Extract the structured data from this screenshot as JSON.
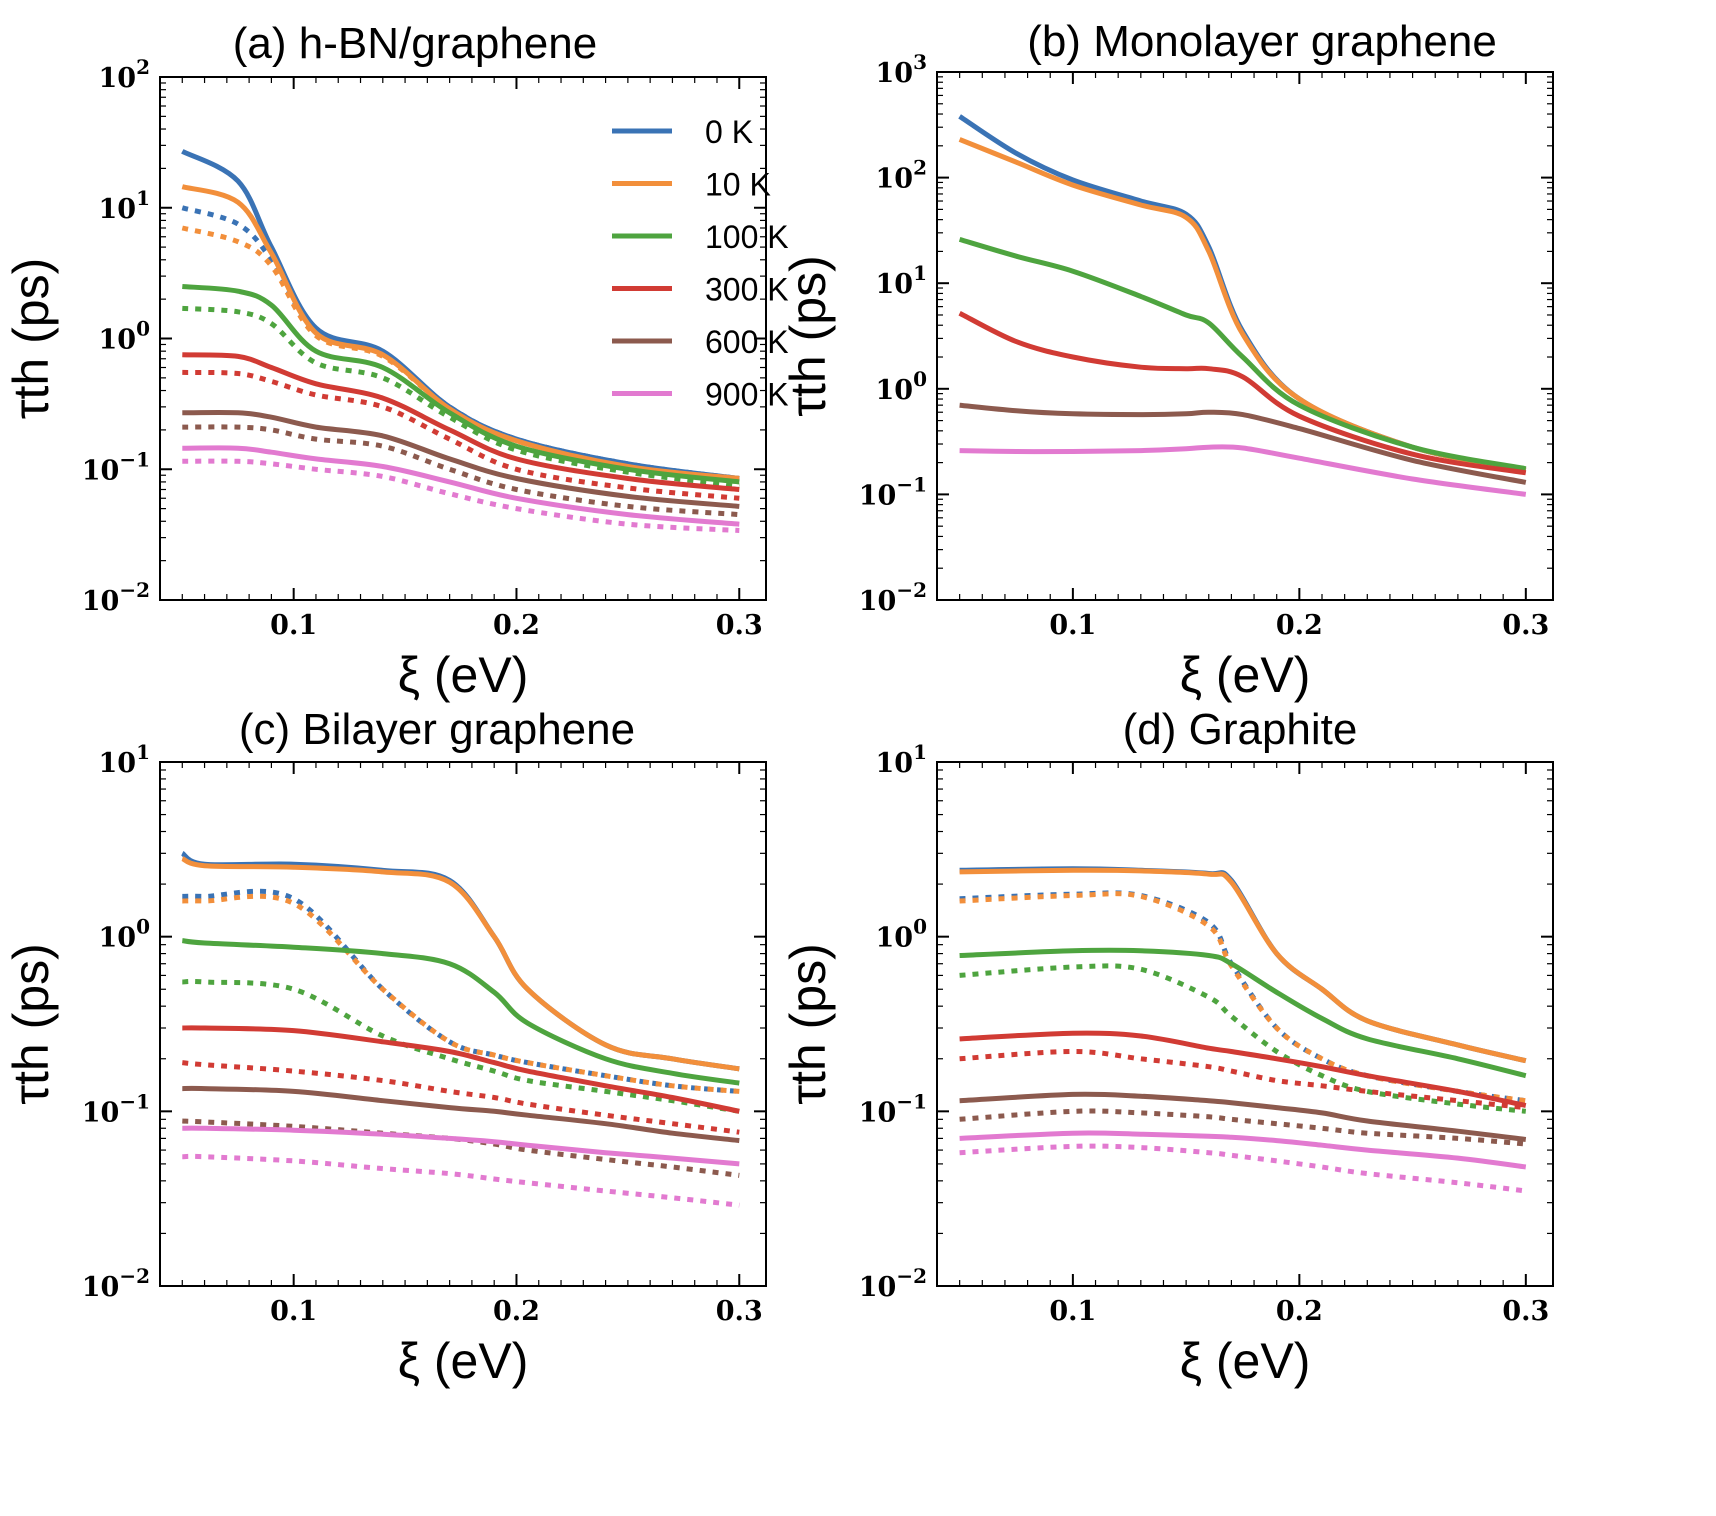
{
  "figure": {
    "legend": {
      "placement": "top-right of panel (a)",
      "entries": [
        {
          "label": "0 K",
          "color": "#3a73b5"
        },
        {
          "label": "10 K",
          "color": "#f28f3b"
        },
        {
          "label": "100 K",
          "color": "#4ea43f"
        },
        {
          "label": "300 K",
          "color": "#d13b34"
        },
        {
          "label": "600 K",
          "color": "#8c5a4e"
        },
        {
          "label": "900 K",
          "color": "#e27ad0"
        }
      ]
    }
  },
  "chart_data": [
    {
      "type": "line",
      "title": "(a) h-BN/graphene",
      "xlabel": "ξ (eV)",
      "ylabel": "τth (ps)",
      "ylog": true,
      "xlim": [
        0.04,
        0.312
      ],
      "ylim": [
        0.01,
        100
      ],
      "xticks": [
        "0.1",
        "0.2",
        "0.3"
      ],
      "yticks": [
        "10^-2",
        "10^-1",
        "10^0",
        "10^1",
        "10^2"
      ],
      "x": [
        0.05,
        0.075,
        0.09,
        0.11,
        0.14,
        0.17,
        0.2,
        0.25,
        0.3
      ],
      "series": [
        {
          "name": "0 K",
          "style": "solid",
          "color": "#3a73b5",
          "values": [
            27,
            16,
            5,
            1.2,
            0.8,
            0.3,
            0.17,
            0.11,
            0.085
          ]
        },
        {
          "name": "10 K",
          "style": "solid",
          "color": "#f28f3b",
          "values": [
            14.5,
            11,
            4.5,
            1.1,
            0.75,
            0.29,
            0.165,
            0.105,
            0.085
          ]
        },
        {
          "name": "100 K",
          "style": "solid",
          "color": "#4ea43f",
          "values": [
            2.5,
            2.3,
            1.8,
            0.8,
            0.6,
            0.27,
            0.15,
            0.1,
            0.08
          ]
        },
        {
          "name": "300 K",
          "style": "solid",
          "color": "#d13b34",
          "values": [
            0.75,
            0.73,
            0.6,
            0.45,
            0.35,
            0.2,
            0.12,
            0.085,
            0.07
          ]
        },
        {
          "name": "600 K",
          "style": "solid",
          "color": "#8c5a4e",
          "values": [
            0.27,
            0.27,
            0.25,
            0.21,
            0.18,
            0.12,
            0.085,
            0.062,
            0.052
          ]
        },
        {
          "name": "900 K",
          "style": "solid",
          "color": "#e27ad0",
          "values": [
            0.145,
            0.145,
            0.135,
            0.12,
            0.105,
            0.08,
            0.06,
            0.045,
            0.038
          ]
        },
        {
          "name": "0 K",
          "style": "dotted",
          "color": "#3a73b5",
          "values": [
            10,
            7.5,
            4,
            1.1,
            0.78,
            0.3,
            0.17,
            0.11,
            0.085
          ]
        },
        {
          "name": "10 K",
          "style": "dotted",
          "color": "#f28f3b",
          "values": [
            7,
            5.5,
            3.6,
            1.05,
            0.73,
            0.29,
            0.165,
            0.105,
            0.085
          ]
        },
        {
          "name": "100 K",
          "style": "dotted",
          "color": "#4ea43f",
          "values": [
            1.7,
            1.6,
            1.3,
            0.65,
            0.5,
            0.25,
            0.14,
            0.095,
            0.075
          ]
        },
        {
          "name": "300 K",
          "style": "dotted",
          "color": "#d13b34",
          "values": [
            0.55,
            0.54,
            0.47,
            0.37,
            0.3,
            0.17,
            0.1,
            0.072,
            0.06
          ]
        },
        {
          "name": "600 K",
          "style": "dotted",
          "color": "#8c5a4e",
          "values": [
            0.21,
            0.21,
            0.2,
            0.17,
            0.15,
            0.1,
            0.07,
            0.052,
            0.045
          ]
        },
        {
          "name": "900 K",
          "style": "dotted",
          "color": "#e27ad0",
          "values": [
            0.115,
            0.115,
            0.11,
            0.1,
            0.088,
            0.065,
            0.05,
            0.038,
            0.034
          ]
        }
      ]
    },
    {
      "type": "line",
      "title": "(b) Monolayer graphene",
      "xlabel": "ξ (eV)",
      "ylabel": "τth (ps)",
      "ylog": true,
      "xlim": [
        0.04,
        0.312
      ],
      "ylim": [
        0.01,
        1000
      ],
      "xticks": [
        "0.1",
        "0.2",
        "0.3"
      ],
      "yticks": [
        "10^-2",
        "10^-1",
        "10^0",
        "10^1",
        "10^2",
        "10^3"
      ],
      "x": [
        0.05,
        0.075,
        0.1,
        0.13,
        0.15,
        0.16,
        0.175,
        0.2,
        0.25,
        0.3
      ],
      "series": [
        {
          "name": "0 K",
          "style": "solid",
          "color": "#3a73b5",
          "values": [
            380,
            170,
            95,
            60,
            45,
            22,
            3.5,
            0.8,
            0.28,
            0.17
          ]
        },
        {
          "name": "10 K",
          "style": "solid",
          "color": "#f28f3b",
          "values": [
            230,
            140,
            85,
            55,
            42,
            20,
            3.3,
            0.8,
            0.28,
            0.17
          ]
        },
        {
          "name": "100 K",
          "style": "solid",
          "color": "#4ea43f",
          "values": [
            26,
            18,
            13,
            7.5,
            5,
            4.2,
            2,
            0.7,
            0.28,
            0.175
          ]
        },
        {
          "name": "300 K",
          "style": "solid",
          "color": "#d13b34",
          "values": [
            5.2,
            2.8,
            2.0,
            1.6,
            1.55,
            1.55,
            1.3,
            0.55,
            0.24,
            0.16
          ]
        },
        {
          "name": "600 K",
          "style": "solid",
          "color": "#8c5a4e",
          "values": [
            0.7,
            0.62,
            0.58,
            0.57,
            0.58,
            0.6,
            0.57,
            0.42,
            0.21,
            0.13
          ]
        },
        {
          "name": "900 K",
          "style": "solid",
          "color": "#e27ad0",
          "values": [
            0.26,
            0.255,
            0.255,
            0.26,
            0.27,
            0.28,
            0.275,
            0.22,
            0.14,
            0.1
          ]
        }
      ]
    },
    {
      "type": "line",
      "title": "(c) Bilayer graphene",
      "xlabel": "ξ (eV)",
      "ylabel": "τth (ps)",
      "ylog": true,
      "xlim": [
        0.04,
        0.312
      ],
      "ylim": [
        0.01,
        10
      ],
      "xticks": [
        "0.1",
        "0.2",
        "0.3"
      ],
      "yticks": [
        "10^-2",
        "10^-1",
        "10^0",
        "10^1"
      ],
      "x": [
        0.05,
        0.06,
        0.1,
        0.14,
        0.17,
        0.19,
        0.205,
        0.24,
        0.27,
        0.3
      ],
      "series": [
        {
          "name": "0 K",
          "style": "solid",
          "color": "#3a73b5",
          "values": [
            3.0,
            2.6,
            2.6,
            2.4,
            2.1,
            1.0,
            0.5,
            0.24,
            0.2,
            0.175
          ]
        },
        {
          "name": "10 K",
          "style": "solid",
          "color": "#f28f3b",
          "values": [
            2.8,
            2.55,
            2.5,
            2.35,
            2.05,
            1.0,
            0.5,
            0.24,
            0.2,
            0.175
          ]
        },
        {
          "name": "100 K",
          "style": "solid",
          "color": "#4ea43f",
          "values": [
            0.95,
            0.92,
            0.87,
            0.8,
            0.7,
            0.48,
            0.32,
            0.2,
            0.165,
            0.145
          ]
        },
        {
          "name": "300 K",
          "style": "solid",
          "color": "#d13b34",
          "values": [
            0.3,
            0.3,
            0.29,
            0.25,
            0.22,
            0.19,
            0.17,
            0.14,
            0.12,
            0.1
          ]
        },
        {
          "name": "600 K",
          "style": "solid",
          "color": "#8c5a4e",
          "values": [
            0.135,
            0.135,
            0.13,
            0.115,
            0.105,
            0.1,
            0.095,
            0.085,
            0.075,
            0.068
          ]
        },
        {
          "name": "900 K",
          "style": "solid",
          "color": "#e27ad0",
          "values": [
            0.08,
            0.08,
            0.078,
            0.074,
            0.07,
            0.067,
            0.064,
            0.058,
            0.054,
            0.05
          ]
        },
        {
          "name": "0 K",
          "style": "dotted",
          "color": "#3a73b5",
          "values": [
            1.7,
            1.7,
            1.65,
            0.5,
            0.25,
            0.21,
            0.19,
            0.16,
            0.14,
            0.13
          ]
        },
        {
          "name": "10 K",
          "style": "dotted",
          "color": "#f28f3b",
          "values": [
            1.6,
            1.6,
            1.55,
            0.5,
            0.25,
            0.21,
            0.19,
            0.16,
            0.14,
            0.13
          ]
        },
        {
          "name": "100 K",
          "style": "dotted",
          "color": "#4ea43f",
          "values": [
            0.55,
            0.55,
            0.5,
            0.27,
            0.2,
            0.17,
            0.15,
            0.13,
            0.115,
            0.1
          ]
        },
        {
          "name": "300 K",
          "style": "dotted",
          "color": "#d13b34",
          "values": [
            0.19,
            0.185,
            0.17,
            0.15,
            0.13,
            0.12,
            0.11,
            0.095,
            0.085,
            0.076
          ]
        },
        {
          "name": "600 K",
          "style": "dotted",
          "color": "#8c5a4e",
          "values": [
            0.088,
            0.087,
            0.082,
            0.075,
            0.07,
            0.065,
            0.06,
            0.053,
            0.048,
            0.043
          ]
        },
        {
          "name": "900 K",
          "style": "dotted",
          "color": "#e27ad0",
          "values": [
            0.055,
            0.055,
            0.052,
            0.047,
            0.044,
            0.041,
            0.039,
            0.035,
            0.032,
            0.029
          ]
        }
      ]
    },
    {
      "type": "line",
      "title": "(d) Graphite",
      "xlabel": "ξ (eV)",
      "ylabel": "τth (ps)",
      "ylog": true,
      "xlim": [
        0.04,
        0.312
      ],
      "ylim": [
        0.01,
        10
      ],
      "xticks": [
        "0.1",
        "0.2",
        "0.3"
      ],
      "yticks": [
        "10^-2",
        "10^-1",
        "10^0",
        "10^1"
      ],
      "x": [
        0.05,
        0.1,
        0.13,
        0.16,
        0.17,
        0.19,
        0.21,
        0.23,
        0.27,
        0.3
      ],
      "series": [
        {
          "name": "0 K",
          "style": "solid",
          "color": "#3a73b5",
          "values": [
            2.4,
            2.45,
            2.4,
            2.3,
            2.1,
            0.8,
            0.5,
            0.33,
            0.24,
            0.195
          ]
        },
        {
          "name": "10 K",
          "style": "solid",
          "color": "#f28f3b",
          "values": [
            2.35,
            2.4,
            2.38,
            2.28,
            2.05,
            0.8,
            0.5,
            0.33,
            0.24,
            0.195
          ]
        },
        {
          "name": "100 K",
          "style": "solid",
          "color": "#4ea43f",
          "values": [
            0.78,
            0.83,
            0.83,
            0.78,
            0.7,
            0.48,
            0.34,
            0.26,
            0.2,
            0.16
          ]
        },
        {
          "name": "300 K",
          "style": "solid",
          "color": "#d13b34",
          "values": [
            0.26,
            0.28,
            0.27,
            0.23,
            0.22,
            0.2,
            0.18,
            0.16,
            0.13,
            0.108
          ]
        },
        {
          "name": "600 K",
          "style": "solid",
          "color": "#8c5a4e",
          "values": [
            0.115,
            0.125,
            0.122,
            0.115,
            0.112,
            0.105,
            0.098,
            0.088,
            0.077,
            0.069
          ]
        },
        {
          "name": "900 K",
          "style": "solid",
          "color": "#e27ad0",
          "values": [
            0.07,
            0.075,
            0.074,
            0.072,
            0.071,
            0.068,
            0.064,
            0.06,
            0.054,
            0.048
          ]
        },
        {
          "name": "0 K",
          "style": "dotted",
          "color": "#3a73b5",
          "values": [
            1.65,
            1.75,
            1.72,
            1.2,
            0.7,
            0.3,
            0.2,
            0.16,
            0.13,
            0.115
          ]
        },
        {
          "name": "10 K",
          "style": "dotted",
          "color": "#f28f3b",
          "values": [
            1.6,
            1.72,
            1.7,
            1.15,
            0.68,
            0.3,
            0.2,
            0.16,
            0.13,
            0.115
          ]
        },
        {
          "name": "100 K",
          "style": "dotted",
          "color": "#4ea43f",
          "values": [
            0.6,
            0.67,
            0.65,
            0.45,
            0.35,
            0.22,
            0.16,
            0.13,
            0.11,
            0.1
          ]
        },
        {
          "name": "300 K",
          "style": "dotted",
          "color": "#d13b34",
          "values": [
            0.2,
            0.22,
            0.2,
            0.18,
            0.17,
            0.15,
            0.14,
            0.13,
            0.115,
            0.105
          ]
        },
        {
          "name": "600 K",
          "style": "dotted",
          "color": "#8c5a4e",
          "values": [
            0.09,
            0.1,
            0.098,
            0.093,
            0.09,
            0.085,
            0.08,
            0.075,
            0.07,
            0.065
          ]
        },
        {
          "name": "900 K",
          "style": "dotted",
          "color": "#e27ad0",
          "values": [
            0.058,
            0.063,
            0.062,
            0.058,
            0.056,
            0.052,
            0.048,
            0.044,
            0.039,
            0.035
          ]
        }
      ]
    }
  ]
}
